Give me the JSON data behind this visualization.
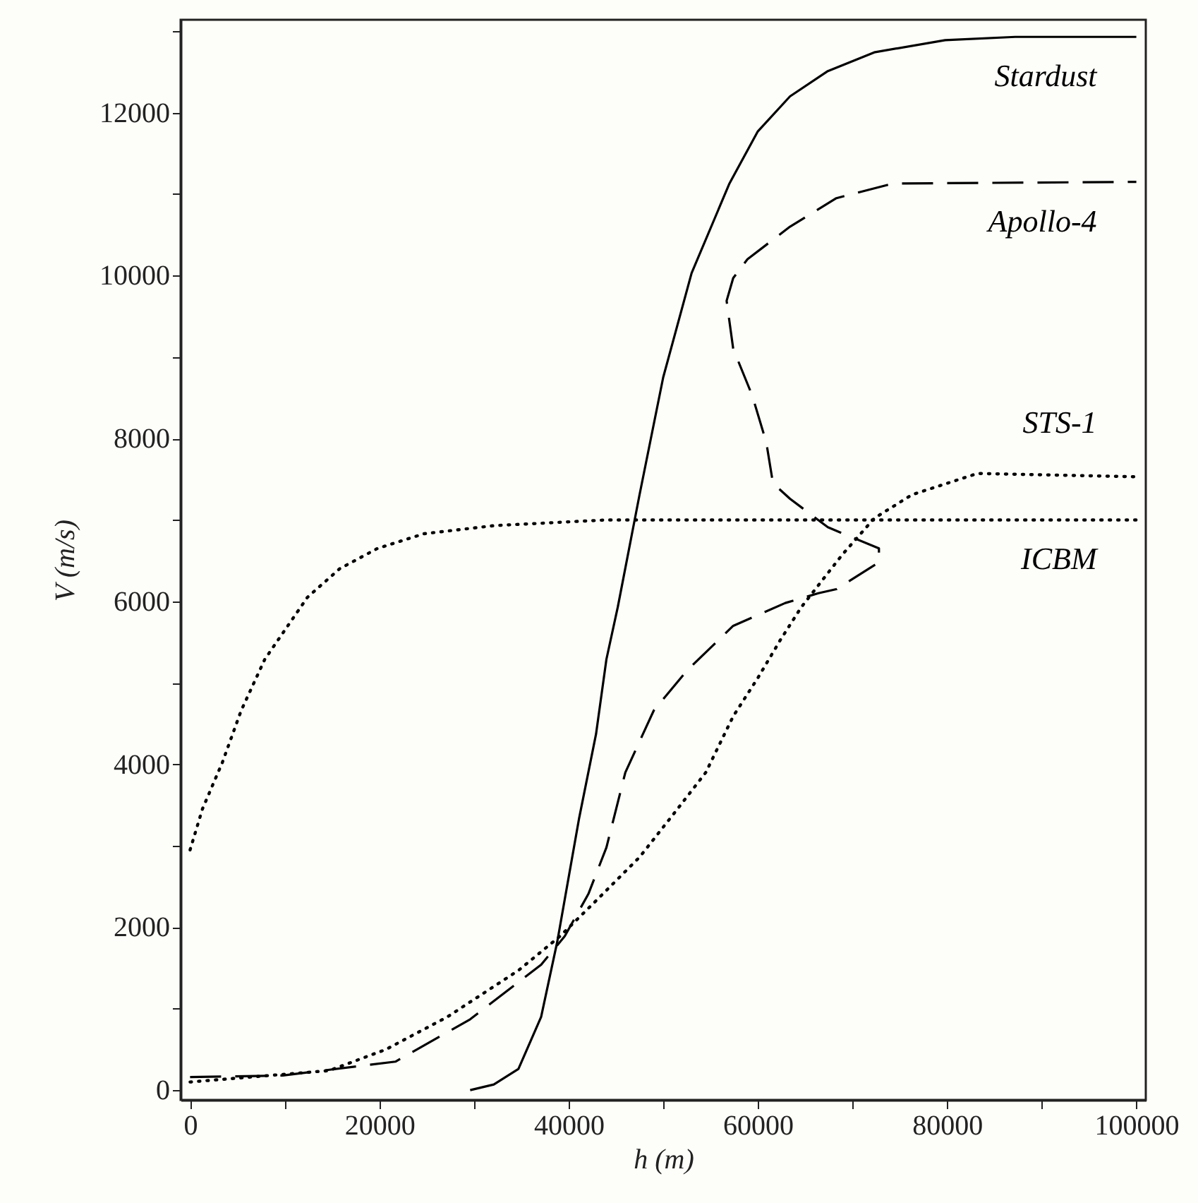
{
  "chart_data": {
    "type": "line",
    "xlabel": "h (m)",
    "ylabel": "V (m/s)",
    "xlim": [
      -1000,
      101000
    ],
    "ylim": [
      -120,
      13140
    ],
    "xticks": [
      0,
      {
        "value": 10000,
        "label": null
      },
      20000,
      {
        "value": 30000,
        "label": null
      },
      40000,
      {
        "value": 50000,
        "label": null
      },
      60000,
      {
        "value": 70000,
        "label": null
      },
      80000,
      {
        "value": 90000,
        "label": null
      },
      100000
    ],
    "yticks": [
      0,
      {
        "value": 1000,
        "label": null
      },
      2000,
      {
        "value": 3000,
        "label": null
      },
      4000,
      {
        "value": 5000,
        "label": null
      },
      6000,
      {
        "value": 7000,
        "label": null
      },
      8000,
      {
        "value": 9000,
        "label": null
      },
      10000,
      {
        "value": 11000,
        "label": null
      },
      12000,
      {
        "value": 13000,
        "label": null
      }
    ],
    "grid": false,
    "series": [
      {
        "name": "Stardust",
        "color": "#000000",
        "line_style": "solid",
        "x": [
          29600,
          32100,
          34700,
          37100,
          38800,
          41100,
          42900,
          44000,
          45200,
          47500,
          50000,
          53000,
          57000,
          60000,
          63400,
          67400,
          72300,
          79800,
          87200,
          100000
        ],
        "values": [
          0,
          70,
          260,
          900,
          1820,
          3330,
          4370,
          5290,
          5930,
          7310,
          8750,
          10030,
          11130,
          11770,
          12200,
          12510,
          12740,
          12890,
          12930,
          12930
        ]
      },
      {
        "name": "Apollo-4",
        "color": "#000000",
        "line_style": "dashed",
        "x": [
          0,
          9800,
          21700,
          29600,
          37100,
          39600,
          42100,
          44000,
          46000,
          49000,
          52500,
          57400,
          62900,
          66400,
          68300,
          72800,
          72800,
          67400,
          63400,
          61600,
          60900,
          59400,
          57400,
          56700,
          57400,
          58900,
          63400,
          68300,
          74300,
          100000
        ],
        "values": [
          160,
          180,
          350,
          870,
          1540,
          1890,
          2410,
          2980,
          3900,
          4660,
          5150,
          5700,
          5980,
          6100,
          6150,
          6480,
          6650,
          6910,
          7260,
          7450,
          7950,
          8530,
          9100,
          9690,
          9970,
          10200,
          10600,
          10950,
          11130,
          11150
        ]
      },
      {
        "name": "STS-1",
        "color": "#000000",
        "line_style": "dotted",
        "x": [
          0,
          14700,
          20700,
          27200,
          34700,
          39100,
          42600,
          47500,
          51500,
          54500,
          57400,
          60000,
          62400,
          64600,
          68900,
          72300,
          76300,
          83200,
          100000
        ],
        "values": [
          100,
          240,
          500,
          900,
          1470,
          1890,
          2290,
          2860,
          3450,
          3900,
          4590,
          5060,
          5530,
          5930,
          6570,
          7020,
          7310,
          7570,
          7530
        ]
      },
      {
        "name": "ICBM",
        "color": "#000000",
        "line_style": "dotted",
        "x": [
          0,
          1300,
          3400,
          5400,
          7900,
          12400,
          15800,
          19800,
          24700,
          32100,
          44000,
          100000
        ],
        "values": [
          2950,
          3450,
          4020,
          4660,
          5290,
          6050,
          6400,
          6650,
          6830,
          6930,
          7000,
          7000
        ]
      }
    ]
  }
}
